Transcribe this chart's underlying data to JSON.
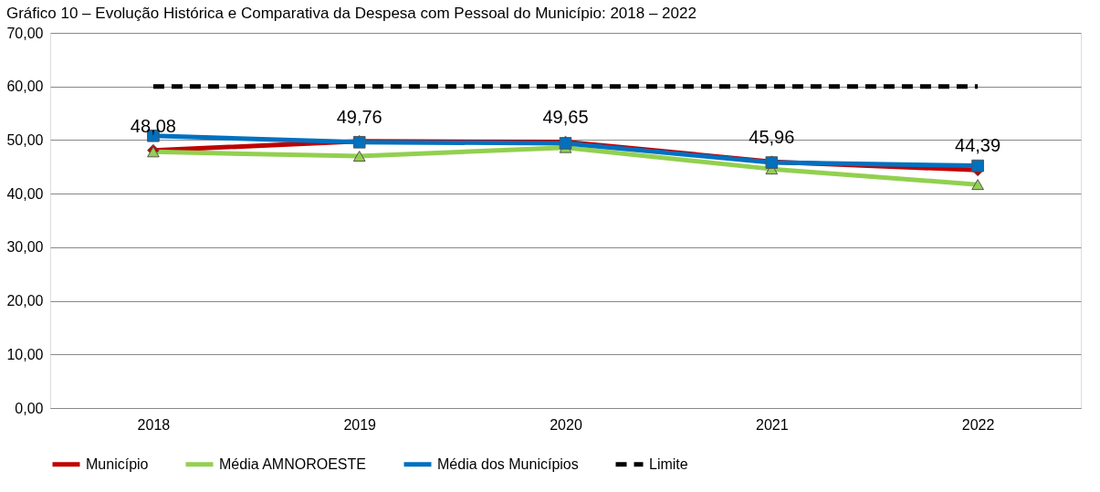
{
  "chart_data": {
    "type": "line",
    "title": "Gráfico 10 – Evolução Histórica e Comparativa da Despesa com Pessoal do Município: 2018 – 2022",
    "categories": [
      "2018",
      "2019",
      "2020",
      "2021",
      "2022"
    ],
    "series": [
      {
        "name": "Município",
        "color": "#c00000",
        "marker": "diamond",
        "line_style": "solid",
        "values": [
          48.08,
          49.76,
          49.65,
          45.96,
          44.39
        ],
        "value_labels": [
          "48,08",
          "49,76",
          "49,65",
          "45,96",
          "44,39"
        ]
      },
      {
        "name": "Média AMNOROESTE",
        "color": "#92d050",
        "marker": "triangle",
        "line_style": "solid",
        "values": [
          47.8,
          47.0,
          48.6,
          44.6,
          41.7
        ]
      },
      {
        "name": "Média dos Municípios",
        "color": "#0070c0",
        "marker": "square",
        "line_style": "solid",
        "values": [
          50.8,
          49.6,
          49.4,
          45.8,
          45.2
        ]
      },
      {
        "name": "Limite",
        "color": "#000000",
        "marker": "none",
        "line_style": "dashed",
        "values": [
          60,
          60,
          60,
          60,
          60
        ]
      }
    ],
    "ylim": [
      0,
      70
    ],
    "yticks": [
      {
        "value": 0,
        "label": "0,00"
      },
      {
        "value": 10,
        "label": "10,00"
      },
      {
        "value": 20,
        "label": "20,00"
      },
      {
        "value": 30,
        "label": "30,00"
      },
      {
        "value": 40,
        "label": "40,00"
      },
      {
        "value": 50,
        "label": "50,00"
      },
      {
        "value": 60,
        "label": "60,00"
      },
      {
        "value": 70,
        "label": "70,00"
      }
    ],
    "grid": "y",
    "legend": "bottom"
  }
}
